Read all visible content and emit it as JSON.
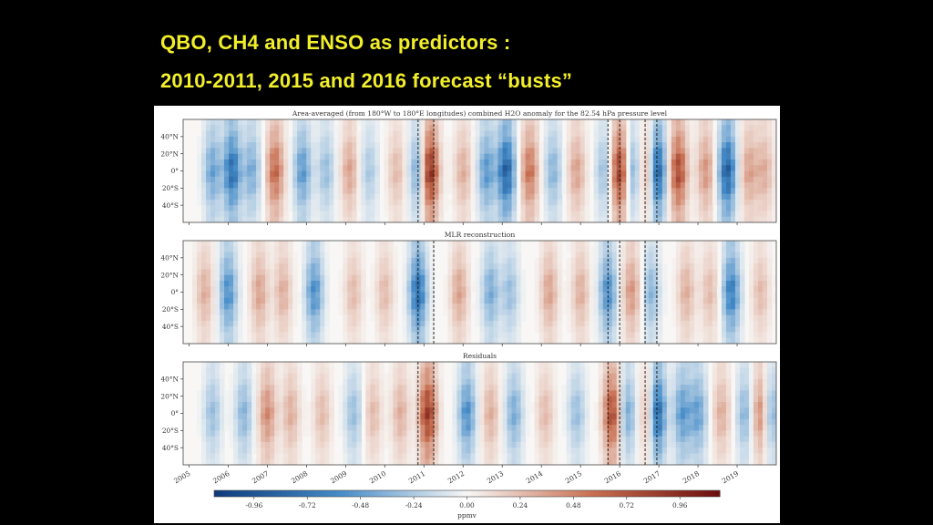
{
  "slide": {
    "title_line1": "QBO, CH4 and ENSO as predictors :",
    "title_line2": "2010-2011, 2015 and 2016 forecast “busts”"
  },
  "chart_data": {
    "type": "heatmap",
    "x_years": [
      "2005",
      "2006",
      "2007",
      "2008",
      "2009",
      "2010",
      "2011",
      "2012",
      "2013",
      "2014",
      "2015",
      "2016",
      "2017",
      "2018",
      "2019"
    ],
    "y_ticks": [
      "40°N",
      "20°N",
      "0°",
      "20°S",
      "40°S"
    ],
    "y_values": [
      40,
      20,
      0,
      -20,
      -40
    ],
    "panels": [
      {
        "title": "Area-averaged (from 180°W to 180°E longitudes) combined H2O anomaly for the 82.54 hPa pressure level",
        "anomalies": [
          {
            "t": 2005.6,
            "v": -0.45
          },
          {
            "t": 2006.1,
            "v": -0.75
          },
          {
            "t": 2006.6,
            "v": -0.4
          },
          {
            "t": 2007.2,
            "v": 0.6
          },
          {
            "t": 2007.9,
            "v": -0.5
          },
          {
            "t": 2008.5,
            "v": -0.3
          },
          {
            "t": 2009.1,
            "v": 0.35
          },
          {
            "t": 2009.6,
            "v": -0.25
          },
          {
            "t": 2010.3,
            "v": 0.25
          },
          {
            "t": 2010.85,
            "v": -0.45
          },
          {
            "t": 2011.15,
            "v": 0.95
          },
          {
            "t": 2012.0,
            "v": 0.3
          },
          {
            "t": 2012.6,
            "v": -0.5
          },
          {
            "t": 2013.1,
            "v": -0.85
          },
          {
            "t": 2013.7,
            "v": 0.55
          },
          {
            "t": 2014.3,
            "v": -0.35
          },
          {
            "t": 2014.9,
            "v": 0.35
          },
          {
            "t": 2015.6,
            "v": -0.3
          },
          {
            "t": 2016.0,
            "v": 0.85
          },
          {
            "t": 2016.3,
            "v": -0.4
          },
          {
            "t": 2016.75,
            "v": 0.45
          },
          {
            "t": 2016.95,
            "v": -0.95
          },
          {
            "t": 2017.5,
            "v": 0.75
          },
          {
            "t": 2018.2,
            "v": 0.4
          },
          {
            "t": 2018.75,
            "v": -0.85
          },
          {
            "t": 2019.3,
            "v": 0.35
          },
          {
            "t": 2019.7,
            "v": 0.3
          }
        ]
      },
      {
        "title": "MLR reconstruction",
        "anomalies": [
          {
            "t": 2005.4,
            "v": 0.3
          },
          {
            "t": 2006.0,
            "v": -0.55
          },
          {
            "t": 2006.8,
            "v": 0.35
          },
          {
            "t": 2007.4,
            "v": 0.3
          },
          {
            "t": 2008.2,
            "v": -0.55
          },
          {
            "t": 2009.2,
            "v": 0.25
          },
          {
            "t": 2010.0,
            "v": 0.25
          },
          {
            "t": 2010.85,
            "v": -0.75
          },
          {
            "t": 2011.9,
            "v": 0.35
          },
          {
            "t": 2012.7,
            "v": -0.4
          },
          {
            "t": 2013.2,
            "v": -0.3
          },
          {
            "t": 2014.2,
            "v": 0.35
          },
          {
            "t": 2015.0,
            "v": 0.3
          },
          {
            "t": 2015.7,
            "v": -0.55
          },
          {
            "t": 2016.3,
            "v": 0.4
          },
          {
            "t": 2016.8,
            "v": -0.35
          },
          {
            "t": 2017.7,
            "v": 0.3
          },
          {
            "t": 2018.3,
            "v": 0.25
          },
          {
            "t": 2018.85,
            "v": -0.65
          },
          {
            "t": 2019.6,
            "v": 0.25
          }
        ]
      },
      {
        "title": "Residuals",
        "anomalies": [
          {
            "t": 2005.6,
            "v": -0.3
          },
          {
            "t": 2006.4,
            "v": -0.35
          },
          {
            "t": 2007.0,
            "v": 0.45
          },
          {
            "t": 2007.6,
            "v": 0.3
          },
          {
            "t": 2008.4,
            "v": 0.25
          },
          {
            "t": 2009.2,
            "v": -0.3
          },
          {
            "t": 2009.7,
            "v": 0.25
          },
          {
            "t": 2010.4,
            "v": 0.3
          },
          {
            "t": 2011.1,
            "v": 0.85
          },
          {
            "t": 2012.1,
            "v": -0.55
          },
          {
            "t": 2012.7,
            "v": 0.3
          },
          {
            "t": 2013.3,
            "v": -0.4
          },
          {
            "t": 2014.1,
            "v": 0.25
          },
          {
            "t": 2014.9,
            "v": -0.3
          },
          {
            "t": 2015.8,
            "v": 0.75
          },
          {
            "t": 2016.2,
            "v": -0.4
          },
          {
            "t": 2016.75,
            "v": 0.4
          },
          {
            "t": 2016.95,
            "v": -0.9
          },
          {
            "t": 2017.6,
            "v": -0.5
          },
          {
            "t": 2018.0,
            "v": -0.45
          },
          {
            "t": 2018.6,
            "v": 0.3
          },
          {
            "t": 2019.2,
            "v": -0.35
          },
          {
            "t": 2019.6,
            "v": 0.5
          },
          {
            "t": 2019.85,
            "v": -0.4
          }
        ]
      }
    ],
    "dashed_lines": [
      2010.85,
      2011.25,
      2015.7,
      2016.0,
      2016.65,
      2016.95
    ],
    "colorbar": {
      "ticks": [
        "-0.96",
        "-0.72",
        "-0.48",
        "-0.24",
        "0.00",
        "0.24",
        "0.48",
        "0.72",
        "0.96"
      ],
      "range": [
        -1.14,
        1.14
      ],
      "label": "ppmv",
      "colors": {
        "negative": "#0d3b7a",
        "neutral": "#f8f7f5",
        "positive": "#6b0d0d"
      }
    }
  }
}
